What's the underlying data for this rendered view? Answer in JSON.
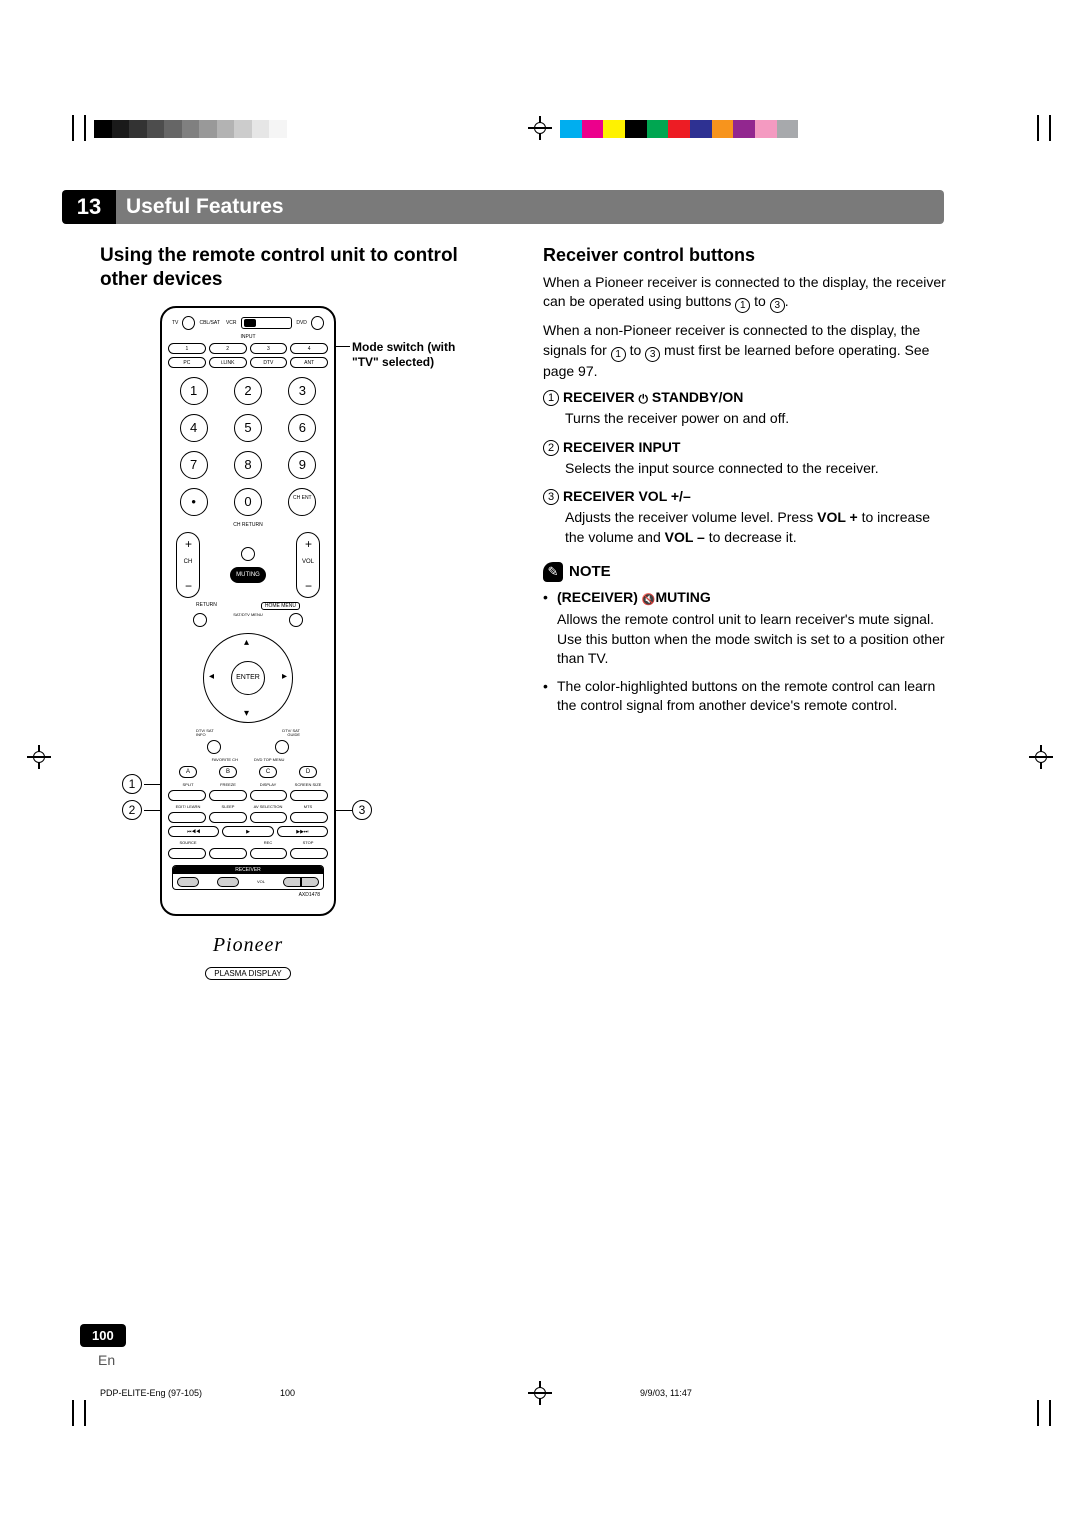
{
  "chapter": {
    "number": "13",
    "title": "Useful Features"
  },
  "left": {
    "heading": "Using the remote control unit to control other devices",
    "mode_switch_label": "Mode switch (with \"TV\" selected)",
    "callouts": {
      "c1": "1",
      "c2": "2",
      "c3": "3"
    },
    "remote": {
      "top_labels": {
        "tv": "TV",
        "cbl": "CBL/SAT",
        "vcr": "VCR",
        "dvd": "DVD"
      },
      "input_label": "INPUT",
      "input_btns": [
        "1",
        "2",
        "3",
        "4"
      ],
      "src_btns": [
        "PC",
        "i.LINK",
        "DTV",
        "ANT"
      ],
      "keypad": [
        "1",
        "2",
        "3",
        "4",
        "5",
        "6",
        "7",
        "8",
        "9",
        "•",
        "0"
      ],
      "ent": "CH ENT",
      "ch_return": "CH RETURN",
      "ch": "CH",
      "vol": "VOL",
      "muting": "MUTING",
      "return": "RETURN",
      "home_menu": "HOME MENU",
      "sat_menu": "SAT/DTV MENU",
      "enter": "ENTER",
      "dtv_info": "DTV/ SAT INFO",
      "dtv_guide": "DTV/ SAT GUIDE",
      "fav": "FAVORITE CH",
      "dvd_menu": "DVD TOP MENU",
      "fav_btns": [
        "A",
        "B",
        "C",
        "D"
      ],
      "row_a": [
        "SPLIT",
        "FREEZE",
        "DISPLAY",
        "SCREEN SIZE"
      ],
      "row_b": [
        "EDIT/ LEARN",
        "SLEEP",
        "AV SELECTION",
        "MTS"
      ],
      "transport": [
        "⏮◀◀",
        "▶",
        "▶▶⏭"
      ],
      "rec_row": [
        "SOURCE",
        "",
        "REC",
        "STOP"
      ],
      "receiver_hdr": "RECEIVER",
      "rcv_vol_label": "VOL",
      "model": "AXD1478",
      "brand": "Pioneer",
      "brand_sub": "PLASMA DISPLAY"
    }
  },
  "right": {
    "heading": "Receiver control buttons",
    "p1a": "When a Pioneer receiver is connected to the display, the receiver can be operated using buttons ",
    "p1b": " to ",
    "p1c": ".",
    "p2a": "When a non-Pioneer receiver is connected to the display, the signals for ",
    "p2b": " to ",
    "p2c": " must first be learned before operating. See page 97.",
    "items": [
      {
        "num": "1",
        "label_a": "RECEIVER ",
        "label_b": " STANDBY/ON",
        "desc": "Turns the receiver power on and off."
      },
      {
        "num": "2",
        "label_a": "RECEIVER INPUT",
        "label_b": "",
        "desc": "Selects the input source connected to the receiver."
      },
      {
        "num": "3",
        "label_a": "RECEIVER VOL +/–",
        "label_b": "",
        "desc_a": "Adjusts the receiver volume level. Press ",
        "desc_bold1": "VOL +",
        "desc_b": " to increase the volume and ",
        "desc_bold2": "VOL –",
        "desc_c": " to decrease it."
      }
    ],
    "note_label": "NOTE",
    "note_b1_label_a": "(RECEIVER) ",
    "note_b1_label_b": "MUTING",
    "note_b1_text": "Allows the remote control unit to learn receiver's mute signal. Use this button when the mode switch is set to a position other than TV.",
    "note_b2": "The color-highlighted buttons on the remote control can learn the control signal from another device's remote control."
  },
  "footer": {
    "page_num": "100",
    "lang": "En",
    "doc": "PDP-ELITE-Eng (97-105)",
    "folio": "100",
    "timestamp": "9/9/03, 11:47"
  },
  "reg": {
    "grays": [
      "#000000",
      "#1a1a1a",
      "#333333",
      "#4d4d4d",
      "#666666",
      "#808080",
      "#999999",
      "#b3b3b3",
      "#cccccc",
      "#e6e6e6",
      "#f5f5f5",
      "#ffffff"
    ],
    "colors": [
      "#00aeef",
      "#ec008c",
      "#fff200",
      "#000000",
      "#00a651",
      "#ed1c24",
      "#2e3192",
      "#f7941d",
      "#92278f",
      "#f49ac1",
      "#a7a9ac",
      "#ffffff"
    ]
  }
}
